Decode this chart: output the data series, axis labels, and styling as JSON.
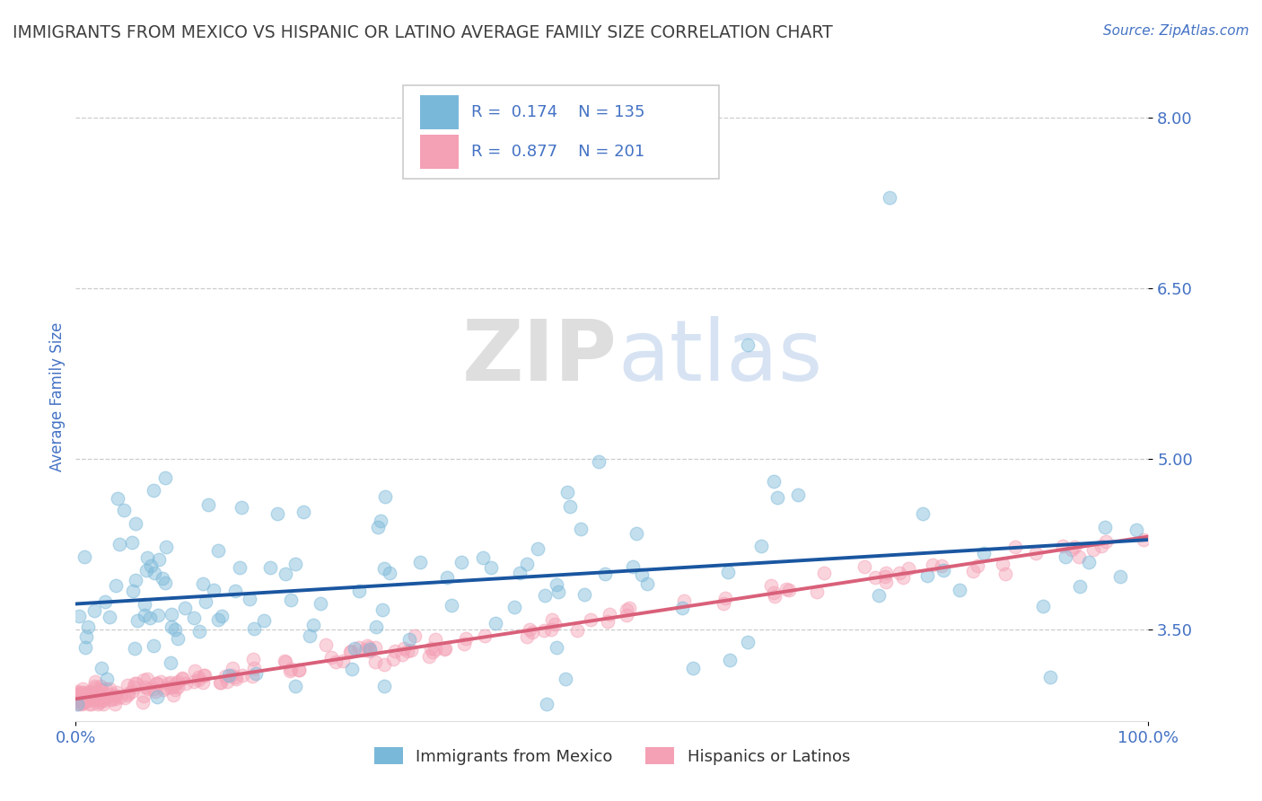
{
  "title": "IMMIGRANTS FROM MEXICO VS HISPANIC OR LATINO AVERAGE FAMILY SIZE CORRELATION CHART",
  "source": "Source: ZipAtlas.com",
  "ylabel": "Average Family Size",
  "xlim": [
    0.0,
    100.0
  ],
  "ylim": [
    2.7,
    8.4
  ],
  "yticks": [
    3.5,
    5.0,
    6.5,
    8.0
  ],
  "xticks": [
    0.0,
    100.0
  ],
  "xticklabels": [
    "0.0%",
    "100.0%"
  ],
  "blue_R": 0.174,
  "blue_N": 135,
  "pink_R": 0.877,
  "pink_N": 201,
  "blue_color": "#7ab8d9",
  "pink_color": "#f4a0b5",
  "blue_line_color": "#1a56a0",
  "pink_line_color": "#d9607a",
  "legend_label_blue": "Immigrants from Mexico",
  "legend_label_pink": "Hispanics or Latinos",
  "watermark_zip": "ZIP",
  "watermark_atlas": "atlas",
  "background_color": "#ffffff",
  "grid_color": "#cccccc",
  "title_color": "#404040",
  "axis_label_color": "#4472c4",
  "tick_color": "#4472c4",
  "source_color": "#4472c4",
  "legend_text_color": "#333333",
  "legend_R_color": "#4472c4"
}
